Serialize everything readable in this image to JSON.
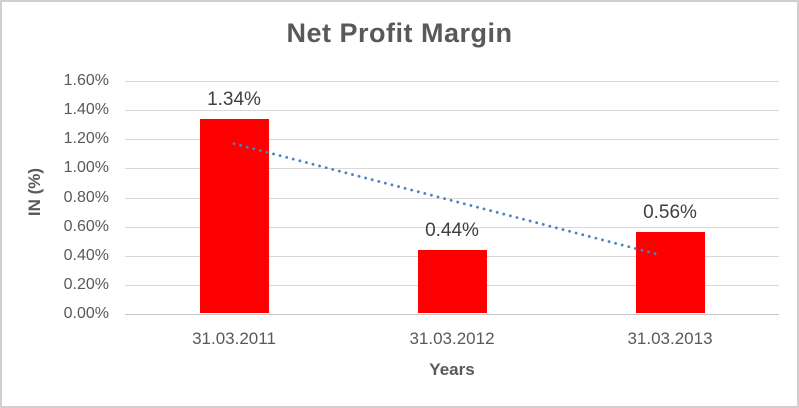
{
  "chart_data": {
    "type": "bar",
    "title": "Net Profit Margin",
    "categories": [
      "31.03.2011",
      "31.03.2012",
      "31.03.2013"
    ],
    "values": [
      1.34,
      0.44,
      0.56
    ],
    "value_labels": [
      "1.34%",
      "0.44%",
      "0.56%"
    ],
    "xlabel": "Years",
    "ylabel": "IN (%)",
    "ylim": [
      0,
      1.6
    ],
    "ytick_step": 0.2,
    "ytick_labels": [
      "0.00%",
      "0.20%",
      "0.40%",
      "0.60%",
      "0.80%",
      "1.00%",
      "1.20%",
      "1.40%",
      "1.60%"
    ],
    "grid": true,
    "legend": "none",
    "trendline": {
      "type": "linear",
      "style": "dotted",
      "fitted_values": [
        1.17,
        0.78,
        0.39
      ]
    },
    "colors": {
      "bar": "#ff0000",
      "trendline": "#4a82c4",
      "title_text": "#595959",
      "axis_text": "#595959",
      "data_label_text": "#404040",
      "gridline": "#d9d9d9",
      "axis_line": "#c6c6c6",
      "frame_border": "#d1cecd",
      "background": "#ffffff"
    }
  }
}
